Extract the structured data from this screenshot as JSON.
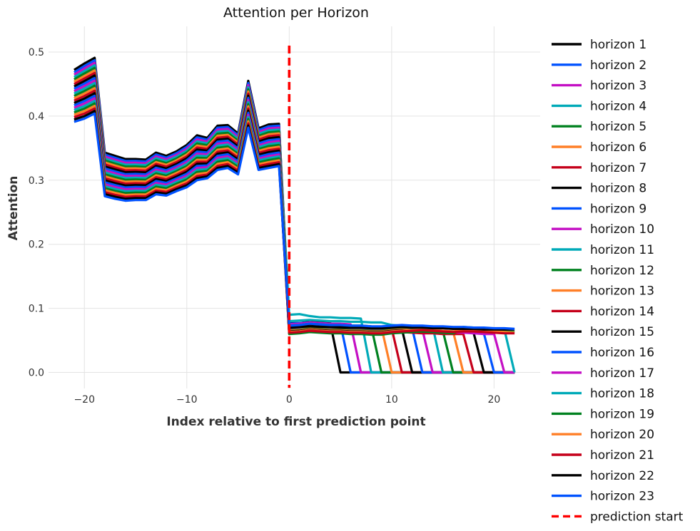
{
  "chart_data": {
    "type": "line",
    "title": "Attention per Horizon",
    "xlabel": "Index relative to first prediction point",
    "ylabel": "Attention",
    "xlim": [
      -23.5,
      24.5
    ],
    "ylim": [
      -0.025,
      0.54
    ],
    "xticks": [
      -20,
      -10,
      0,
      10,
      20
    ],
    "xtick_labels": [
      "−20",
      "−10",
      "0",
      "10",
      "20"
    ],
    "yticks": [
      0.0,
      0.1,
      0.2,
      0.3,
      0.4,
      0.5
    ],
    "ytick_labels": [
      "0.0",
      "0.1",
      "0.2",
      "0.3",
      "0.4",
      "0.5"
    ],
    "grid": true,
    "legend_position": "outside-right",
    "x": [
      -21,
      -20,
      -19,
      -18,
      -17,
      -16,
      -15,
      -14,
      -13,
      -12,
      -11,
      -10,
      -9,
      -8,
      -7,
      -6,
      -5,
      -4,
      -3,
      -2,
      -1,
      0,
      1,
      2,
      3,
      4,
      5,
      6,
      7,
      8,
      9,
      10,
      11,
      12,
      13,
      14,
      15,
      16,
      17,
      18,
      19,
      20,
      21,
      22
    ],
    "colors": [
      "#000000",
      "#0052ff",
      "#c40fc4",
      "#00aab8",
      "#00811f",
      "#ff7f27",
      "#c5001a"
    ],
    "encoder_top": [
      0.472,
      0.482,
      0.491,
      0.343,
      0.338,
      0.333,
      0.333,
      0.332,
      0.343,
      0.338,
      0.345,
      0.355,
      0.37,
      0.366,
      0.385,
      0.386,
      0.373,
      0.455,
      0.381,
      0.387,
      0.388
    ],
    "encoder_bottom": [
      0.391,
      0.396,
      0.404,
      0.275,
      0.271,
      0.268,
      0.269,
      0.269,
      0.278,
      0.276,
      0.283,
      0.289,
      0.3,
      0.303,
      0.316,
      0.319,
      0.309,
      0.382,
      0.316,
      0.319,
      0.322
    ],
    "series": [
      {
        "name": "horizon 1",
        "decoder": [
          0.077,
          0.077,
          0.079,
          0.078,
          0.078
        ]
      },
      {
        "name": "horizon 2",
        "decoder": [
          0.076,
          0.077,
          0.078,
          0.077,
          0.076,
          0.076
        ]
      },
      {
        "name": "horizon 3",
        "decoder": [
          0.075,
          0.076,
          0.078,
          0.077,
          0.076,
          0.076,
          0.075
        ]
      },
      {
        "name": "horizon 4",
        "decoder": [
          0.09,
          0.091,
          0.088,
          0.086,
          0.086,
          0.085,
          0.085,
          0.084
        ]
      },
      {
        "name": "horizon 5",
        "decoder": [
          0.073,
          0.074,
          0.076,
          0.075,
          0.074,
          0.074,
          0.073,
          0.073,
          0.072
        ]
      },
      {
        "name": "horizon 6",
        "decoder": [
          0.072,
          0.073,
          0.075,
          0.074,
          0.073,
          0.073,
          0.072,
          0.072,
          0.071,
          0.071
        ]
      },
      {
        "name": "horizon 7",
        "decoder": [
          0.071,
          0.072,
          0.074,
          0.073,
          0.072,
          0.072,
          0.071,
          0.071,
          0.07,
          0.07,
          0.069
        ]
      },
      {
        "name": "horizon 8",
        "decoder": [
          0.07,
          0.071,
          0.073,
          0.072,
          0.071,
          0.071,
          0.07,
          0.07,
          0.069,
          0.069,
          0.068,
          0.068
        ]
      },
      {
        "name": "horizon 9",
        "decoder": [
          0.069,
          0.07,
          0.072,
          0.071,
          0.07,
          0.07,
          0.069,
          0.069,
          0.068,
          0.068,
          0.069,
          0.07,
          0.069
        ]
      },
      {
        "name": "horizon 10",
        "decoder": [
          0.068,
          0.069,
          0.071,
          0.07,
          0.069,
          0.069,
          0.068,
          0.068,
          0.067,
          0.067,
          0.068,
          0.069,
          0.068,
          0.067
        ]
      },
      {
        "name": "horizon 11",
        "decoder": [
          0.08,
          0.081,
          0.082,
          0.081,
          0.08,
          0.08,
          0.079,
          0.079,
          0.078,
          0.078,
          0.074,
          0.073,
          0.072,
          0.071,
          0.072
        ]
      },
      {
        "name": "horizon 12",
        "decoder": [
          0.066,
          0.067,
          0.069,
          0.068,
          0.067,
          0.067,
          0.066,
          0.066,
          0.065,
          0.065,
          0.067,
          0.068,
          0.067,
          0.066,
          0.066,
          0.065
        ]
      },
      {
        "name": "horizon 13",
        "decoder": [
          0.065,
          0.066,
          0.068,
          0.067,
          0.066,
          0.066,
          0.065,
          0.065,
          0.064,
          0.064,
          0.066,
          0.067,
          0.066,
          0.065,
          0.065,
          0.064,
          0.064
        ]
      },
      {
        "name": "horizon 14",
        "decoder": [
          0.061,
          0.062,
          0.064,
          0.063,
          0.062,
          0.062,
          0.061,
          0.061,
          0.06,
          0.06,
          0.062,
          0.063,
          0.062,
          0.061,
          0.061,
          0.06,
          0.06,
          0.06
        ]
      },
      {
        "name": "horizon 15",
        "decoder": [
          0.064,
          0.065,
          0.067,
          0.066,
          0.065,
          0.065,
          0.064,
          0.064,
          0.063,
          0.063,
          0.065,
          0.066,
          0.065,
          0.064,
          0.064,
          0.063,
          0.063,
          0.063,
          0.062
        ]
      },
      {
        "name": "horizon 16",
        "decoder": [
          0.063,
          0.064,
          0.066,
          0.065,
          0.064,
          0.064,
          0.063,
          0.063,
          0.062,
          0.062,
          0.064,
          0.065,
          0.066,
          0.067,
          0.066,
          0.065,
          0.064,
          0.063,
          0.062,
          0.061
        ]
      },
      {
        "name": "horizon 17",
        "decoder": [
          0.062,
          0.063,
          0.065,
          0.064,
          0.063,
          0.063,
          0.062,
          0.062,
          0.061,
          0.061,
          0.063,
          0.064,
          0.065,
          0.066,
          0.065,
          0.064,
          0.063,
          0.062,
          0.061,
          0.06,
          0.06
        ]
      },
      {
        "name": "horizon 18",
        "decoder": [
          0.061,
          0.062,
          0.064,
          0.063,
          0.062,
          0.062,
          0.061,
          0.061,
          0.06,
          0.06,
          0.062,
          0.063,
          0.064,
          0.065,
          0.064,
          0.063,
          0.062,
          0.071,
          0.07,
          0.069,
          0.068,
          0.067
        ]
      },
      {
        "name": "horizon 19",
        "decoder": [
          0.06,
          0.061,
          0.063,
          0.062,
          0.061,
          0.061,
          0.06,
          0.06,
          0.059,
          0.059,
          0.061,
          0.062,
          0.063,
          0.064,
          0.063,
          0.062,
          0.061,
          0.068,
          0.067,
          0.066,
          0.065,
          0.064,
          0.063
        ]
      },
      {
        "name": "horizon 20",
        "decoder": [
          0.063,
          0.064,
          0.066,
          0.065,
          0.064,
          0.064,
          0.063,
          0.063,
          0.062,
          0.062,
          0.064,
          0.065,
          0.066,
          0.067,
          0.066,
          0.065,
          0.064,
          0.066,
          0.066,
          0.065,
          0.064,
          0.063,
          0.062,
          0.062
        ]
      },
      {
        "name": "horizon 21",
        "decoder": [
          0.062,
          0.063,
          0.065,
          0.064,
          0.063,
          0.063,
          0.062,
          0.062,
          0.061,
          0.061,
          0.063,
          0.064,
          0.065,
          0.066,
          0.065,
          0.064,
          0.063,
          0.064,
          0.064,
          0.063,
          0.062,
          0.061,
          0.061,
          0.061,
          0.061
        ]
      },
      {
        "name": "horizon 22",
        "decoder": [
          0.07,
          0.071,
          0.072,
          0.071,
          0.071,
          0.07,
          0.07,
          0.07,
          0.069,
          0.069,
          0.07,
          0.071,
          0.07,
          0.07,
          0.069,
          0.069,
          0.068,
          0.068,
          0.068,
          0.067,
          0.067,
          0.067,
          0.067,
          0.067,
          0.068,
          0.068
        ]
      },
      {
        "name": "horizon 23",
        "decoder": [
          0.073,
          0.074,
          0.076,
          0.075,
          0.074,
          0.074,
          0.073,
          0.073,
          0.072,
          0.072,
          0.073,
          0.074,
          0.073,
          0.073,
          0.072,
          0.072,
          0.071,
          0.071,
          0.07,
          0.07,
          0.069,
          0.069,
          0.068,
          0.068,
          0.068,
          0.068,
          0.069,
          0.07
        ]
      }
    ],
    "reference_line": {
      "name": "prediction start",
      "x": 0,
      "color": "#ff0000"
    }
  }
}
